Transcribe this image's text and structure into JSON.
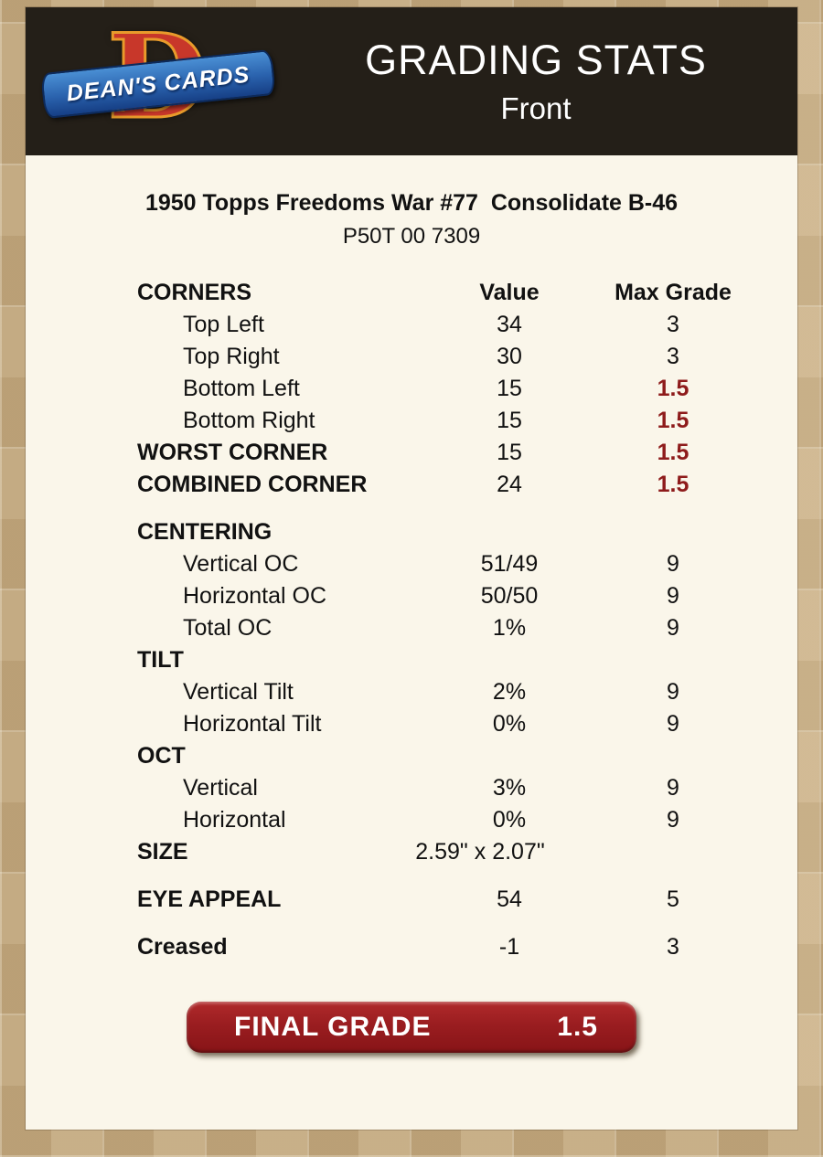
{
  "header": {
    "logo": {
      "brand": "DEAN'S CARDS",
      "monogram": "D"
    },
    "title": "GRADING STATS",
    "subtitle": "Front"
  },
  "card": {
    "title": "1950 Topps Freedoms War #77  Consolidate B-46",
    "serial": "P50T 00 7309"
  },
  "table": {
    "header": {
      "label": "CORNERS",
      "value": "Value",
      "max": "Max Grade"
    },
    "rows": [
      {
        "label": "Top Left",
        "indent": true,
        "value": "34",
        "max": "3"
      },
      {
        "label": "Top Right",
        "indent": true,
        "value": "30",
        "max": "3"
      },
      {
        "label": "Bottom Left",
        "indent": true,
        "value": "15",
        "max": "1.5",
        "max_red": true
      },
      {
        "label": "Bottom Right",
        "indent": true,
        "value": "15",
        "max": "1.5",
        "max_red": true
      },
      {
        "label": "WORST CORNER",
        "bold": true,
        "value": "15",
        "max": "1.5",
        "max_red": true
      },
      {
        "label": "COMBINED CORNER",
        "bold": true,
        "value": "24",
        "max": "1.5",
        "max_red": true
      },
      {
        "label": "CENTERING",
        "bold": true,
        "value": "",
        "max": "",
        "gap_before": true
      },
      {
        "label": "Vertical OC",
        "indent": true,
        "value": "51/49",
        "max": "9"
      },
      {
        "label": "Horizontal OC",
        "indent": true,
        "value": "50/50",
        "max": "9"
      },
      {
        "label": "Total OC",
        "indent": true,
        "value": "1%",
        "max": "9"
      },
      {
        "label": "TILT",
        "bold": true,
        "value": "",
        "max": ""
      },
      {
        "label": "Vertical Tilt",
        "indent": true,
        "value": "2%",
        "max": "9"
      },
      {
        "label": "Horizontal Tilt",
        "indent": true,
        "value": "0%",
        "max": "9"
      },
      {
        "label": "OCT",
        "bold": true,
        "value": "",
        "max": ""
      },
      {
        "label": "Vertical",
        "indent": true,
        "value": "3%",
        "max": "9"
      },
      {
        "label": "Horizontal",
        "indent": true,
        "value": "0%",
        "max": "9"
      },
      {
        "label": "SIZE",
        "bold": true,
        "value": "2.59\" x 2.07\"",
        "max": "",
        "wide": true
      },
      {
        "label": "EYE APPEAL",
        "bold": true,
        "value": "54",
        "max": "5",
        "gap_before": true
      },
      {
        "label": "Creased",
        "bold": true,
        "value": "-1",
        "max": "3",
        "gap_before": true
      }
    ]
  },
  "final_grade": {
    "label": "FINAL GRADE",
    "value": "1.5"
  },
  "colors": {
    "accent_red": "#9A1D20",
    "highlight_red": "#8E1B1B",
    "header_bg": "#241F18",
    "panel_bg": "#FAF6EA",
    "border_tan": "#C7AD84"
  }
}
